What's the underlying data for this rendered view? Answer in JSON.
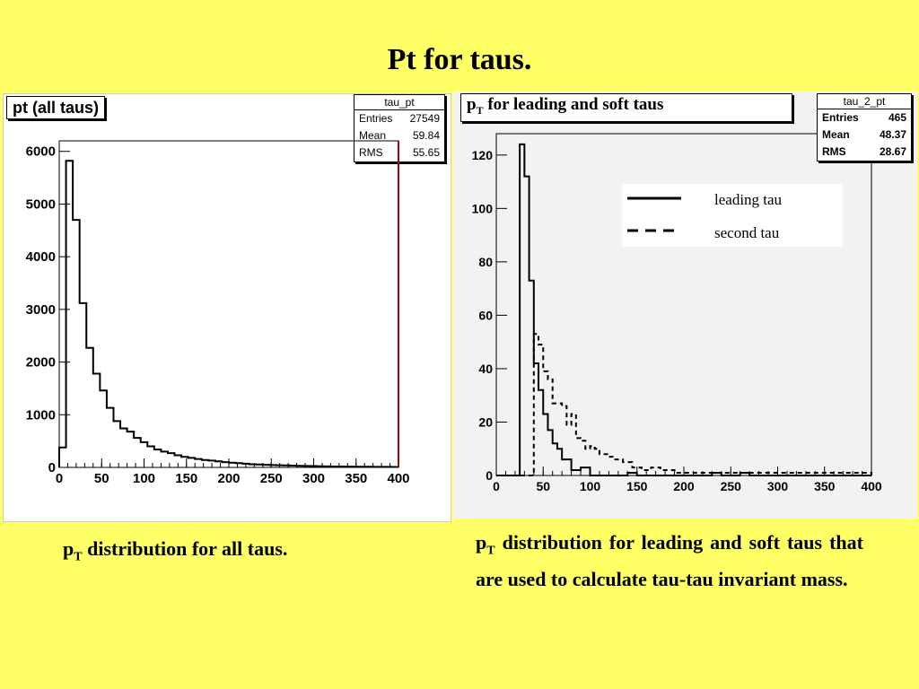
{
  "slide": {
    "title": "Pt for taus."
  },
  "left_panel": {
    "title": "pt (all taus)",
    "stats": {
      "name": "tau_pt",
      "entries_label": "Entries",
      "entries": "27549",
      "mean_label": "Mean",
      "mean": "59.84",
      "rms_label": "RMS",
      "rms": "55.65"
    }
  },
  "right_panel": {
    "title_main": "p",
    "title_sub": "T",
    "title_rest": " for leading and soft taus",
    "stats": {
      "name": "tau_2_pt",
      "entries_label": "Entries",
      "entries": "465",
      "mean_label": "Mean",
      "mean": "48.37",
      "rms_label": "RMS",
      "rms": "28.67"
    },
    "legend": {
      "leading": "leading tau",
      "second": "second tau"
    }
  },
  "captions": {
    "left": {
      "p": "p",
      "sub": "T",
      "rest": " distribution for all taus."
    },
    "right": {
      "p": "p",
      "sub": "T",
      "rest": " distribution for leading and soft taus that are used to calculate tau-tau invariant mass."
    }
  },
  "chart_data": [
    {
      "type": "histogram",
      "title": "pt (all taus)",
      "xlim": [
        0,
        400
      ],
      "ylim": [
        0,
        6200
      ],
      "xticks": [
        0,
        50,
        100,
        150,
        200,
        250,
        300,
        350,
        400
      ],
      "yticks": [
        0,
        1000,
        2000,
        3000,
        4000,
        5000,
        6000
      ],
      "bin_width": 8,
      "bins_start": 0,
      "values": [
        380,
        5820,
        4700,
        3120,
        2270,
        1780,
        1460,
        1130,
        880,
        740,
        680,
        560,
        480,
        400,
        340,
        300,
        270,
        230,
        200,
        180,
        160,
        140,
        130,
        115,
        100,
        90,
        80,
        70,
        60,
        55,
        50,
        45,
        40,
        38,
        34,
        30,
        28,
        25,
        22,
        20,
        18,
        16,
        15,
        14,
        13,
        12,
        11,
        10,
        10,
        9
      ]
    },
    {
      "type": "histogram",
      "title": "pT for leading and soft taus",
      "xlim": [
        0,
        400
      ],
      "ylim": [
        0,
        128
      ],
      "xticks": [
        0,
        50,
        100,
        150,
        200,
        250,
        300,
        350,
        400
      ],
      "yticks": [
        0,
        20,
        40,
        60,
        80,
        100,
        120
      ],
      "bin_width": 5,
      "series": [
        {
          "name": "leading tau",
          "style": "solid",
          "values": [
            0,
            0,
            0,
            0,
            0,
            124,
            112,
            73,
            42,
            32,
            23,
            17,
            12,
            10,
            6,
            6,
            2,
            2,
            3,
            3,
            0,
            0,
            0,
            0,
            0,
            0,
            0,
            0,
            1,
            1,
            0,
            0,
            0,
            0,
            0,
            0,
            0,
            0,
            0,
            0,
            0,
            0,
            0,
            0,
            0,
            0,
            1,
            1,
            0,
            0,
            0,
            0,
            1,
            1,
            0,
            0,
            0,
            0,
            0,
            0,
            0,
            0,
            0,
            0,
            0,
            0,
            0,
            0,
            0,
            0,
            0,
            0,
            0,
            0,
            0,
            0,
            0,
            0,
            0,
            0
          ]
        },
        {
          "name": "second tau",
          "style": "dashed",
          "values": [
            0,
            0,
            0,
            0,
            0,
            0,
            0,
            0,
            53,
            49,
            39,
            36,
            27,
            27,
            26,
            19,
            23,
            14,
            13,
            10,
            11,
            10,
            8,
            8,
            7,
            6,
            6,
            5,
            5,
            3,
            3,
            2,
            2,
            3,
            3,
            2,
            2,
            2,
            1,
            1,
            1,
            1,
            1,
            1,
            1,
            1,
            1,
            1,
            1,
            1,
            1,
            1,
            1,
            1,
            1,
            1,
            1,
            1,
            1,
            1,
            1,
            1,
            1,
            1,
            1,
            1,
            1,
            1,
            1,
            1,
            1,
            1,
            1,
            1,
            1,
            1,
            1,
            1,
            1,
            1
          ]
        }
      ]
    }
  ]
}
